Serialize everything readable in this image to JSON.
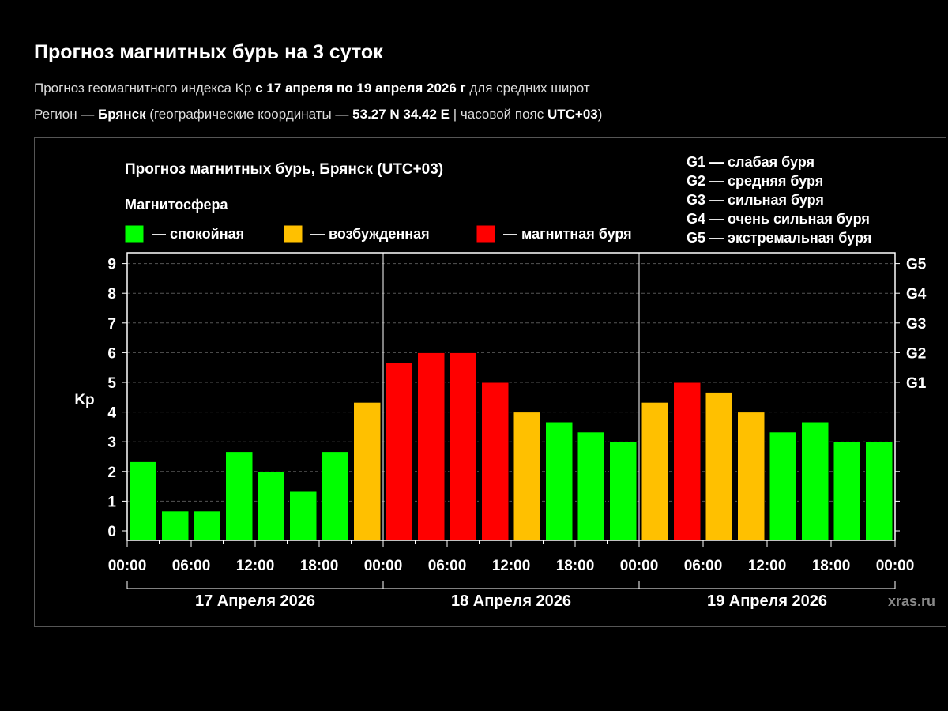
{
  "page": {
    "title": "Прогноз магнитных бурь на 3 суток",
    "line1": {
      "prefix": "Прогноз геомагнитного индекса Kp ",
      "period": "с 17 апреля по 19 апреля 2026 г",
      "suffix": " для средних широт"
    },
    "line2": {
      "prefix": "Регион — ",
      "city": "Брянск",
      "mid": " (географические координаты — ",
      "coords": "53.27 N 34.42 E",
      "mid2": " | часовой пояс ",
      "tz": "UTC+03",
      "suffix": ")"
    }
  },
  "colors": {
    "calm": "#00ff00",
    "excited": "#ffc000",
    "storm": "#ff0000"
  },
  "chart_data": {
    "type": "bar",
    "title": "Прогноз магнитных бурь, Брянск (UTC+03)",
    "legend_title": "Магнитосфера",
    "legend": [
      {
        "key": "calm",
        "label": "— спокойная"
      },
      {
        "key": "excited",
        "label": "— возбужденная"
      },
      {
        "key": "storm",
        "label": "— магнитная буря"
      }
    ],
    "g_scale_legend": [
      "G1 — слабая буря",
      "G2 — средняя буря",
      "G3 — сильная буря",
      "G4 — очень сильная буря",
      "G5 — экстремальная буря"
    ],
    "ylabel": "Kp",
    "ylim": [
      0,
      9
    ],
    "yticks": [
      0,
      1,
      2,
      3,
      4,
      5,
      6,
      7,
      8,
      9
    ],
    "right_ticks": [
      {
        "label": "G1",
        "value": 5
      },
      {
        "label": "G2",
        "value": 6
      },
      {
        "label": "G3",
        "value": 7
      },
      {
        "label": "G4",
        "value": 8
      },
      {
        "label": "G5",
        "value": 9
      }
    ],
    "grid": "dashed horizontal",
    "xtick_labels": [
      "00:00",
      "06:00",
      "12:00",
      "18:00",
      "00:00",
      "06:00",
      "12:00",
      "18:00",
      "00:00",
      "06:00",
      "12:00",
      "18:00",
      "00:00"
    ],
    "days": [
      "17 Апреля 2026",
      "18 Апреля 2026",
      "19 Апреля 2026"
    ],
    "values": [
      2.33,
      0.67,
      0.67,
      2.67,
      2.0,
      1.33,
      2.67,
      4.33,
      5.67,
      6.0,
      6.0,
      5.0,
      4.0,
      3.67,
      3.33,
      3.0,
      4.33,
      5.0,
      4.67,
      4.0,
      3.33,
      3.67,
      3.0,
      3.0
    ],
    "levels": [
      "calm",
      "calm",
      "calm",
      "calm",
      "calm",
      "calm",
      "calm",
      "excited",
      "storm",
      "storm",
      "storm",
      "storm",
      "excited",
      "calm",
      "calm",
      "calm",
      "excited",
      "storm",
      "excited",
      "excited",
      "calm",
      "calm",
      "calm",
      "calm"
    ],
    "watermark": "xras.ru"
  }
}
